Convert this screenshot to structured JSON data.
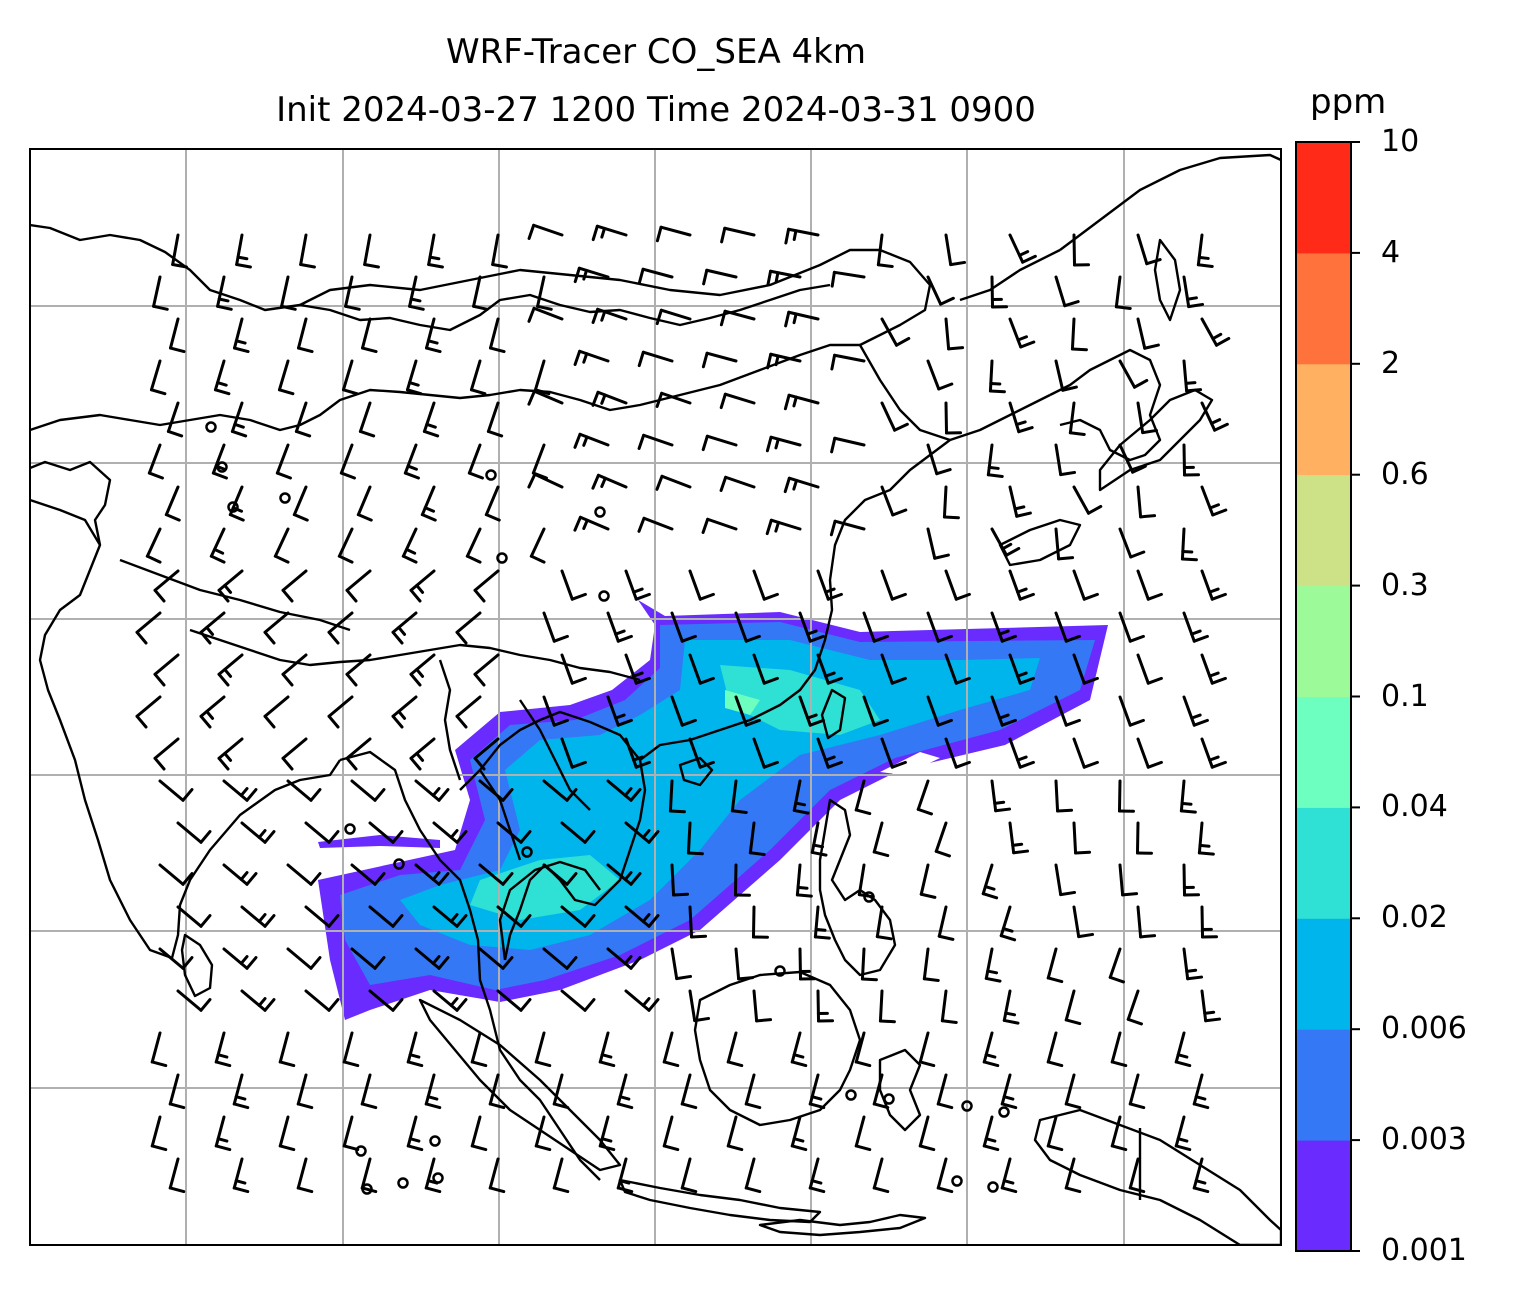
{
  "title": {
    "line1": "WRF-Tracer CO_SEA 4km",
    "line2": "Init 2024-03-27 1200 Time 2024-03-31 0900"
  },
  "colorbar": {
    "unit": "ppm",
    "levels": [
      "0.001",
      "0.003",
      "0.006",
      "0.02",
      "0.04",
      "0.1",
      "0.3",
      "0.6",
      "2",
      "4",
      "10"
    ],
    "colors": [
      "#6a2bff",
      "#3478f5",
      "#00b4ec",
      "#2fe0d4",
      "#6cffc0",
      "#9cfa99",
      "#cde287",
      "#ffb161",
      "#ff723c",
      "#ff2a18"
    ]
  },
  "map": {
    "frame_color": "#000000",
    "grid_color": "#b0b0b0",
    "coastline_color": "#000000",
    "wind_barb_color": "#000000"
  }
}
